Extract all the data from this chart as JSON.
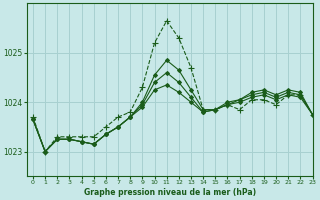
{
  "title": "Graphe pression niveau de la mer (hPa)",
  "bg_color": "#c8e8e8",
  "grid_color": "#a8d0d0",
  "line_color": "#1a5c1a",
  "text_color": "#1a5c1a",
  "xlim": [
    -0.5,
    23
  ],
  "ylim": [
    1022.5,
    1026.0
  ],
  "yticks": [
    1023,
    1024,
    1025
  ],
  "xticks": [
    0,
    1,
    2,
    3,
    4,
    5,
    6,
    7,
    8,
    9,
    10,
    11,
    12,
    13,
    14,
    15,
    16,
    17,
    18,
    19,
    20,
    21,
    22,
    23
  ],
  "series": [
    {
      "x": [
        0,
        1,
        2,
        3,
        4,
        5,
        6,
        7,
        8,
        9,
        10,
        11,
        12,
        13,
        14,
        15,
        16,
        17,
        18,
        19,
        20,
        21,
        22,
        23
      ],
      "y": [
        1023.7,
        1023.0,
        1023.3,
        1023.3,
        1023.3,
        1023.3,
        1023.5,
        1023.7,
        1023.8,
        1024.3,
        1025.2,
        1025.65,
        1025.3,
        1024.7,
        1023.85,
        1023.85,
        1023.95,
        1023.85,
        1024.05,
        1024.05,
        1023.95,
        1024.15,
        1024.15,
        1023.75
      ],
      "linestyle": "--",
      "marker": "+"
    },
    {
      "x": [
        0,
        1,
        2,
        3,
        4,
        5,
        6,
        7,
        8,
        9,
        10,
        11,
        12,
        13,
        14,
        15,
        16,
        17,
        18,
        19,
        20,
        21,
        22,
        23
      ],
      "y": [
        1023.65,
        1023.0,
        1023.25,
        1023.25,
        1023.2,
        1023.15,
        1023.35,
        1023.5,
        1023.7,
        1024.0,
        1024.55,
        1024.85,
        1024.65,
        1024.25,
        1023.85,
        1023.85,
        1024.0,
        1024.05,
        1024.2,
        1024.25,
        1024.15,
        1024.25,
        1024.2,
        1023.75
      ],
      "linestyle": "-",
      "marker": "D"
    },
    {
      "x": [
        0,
        1,
        2,
        3,
        4,
        5,
        6,
        7,
        8,
        9,
        10,
        11,
        12,
        13,
        14,
        15,
        16,
        17,
        18,
        19,
        20,
        21,
        22,
        23
      ],
      "y": [
        1023.65,
        1023.0,
        1023.25,
        1023.25,
        1023.2,
        1023.15,
        1023.35,
        1023.5,
        1023.7,
        1023.95,
        1024.4,
        1024.6,
        1024.4,
        1024.1,
        1023.8,
        1023.85,
        1023.95,
        1024.05,
        1024.15,
        1024.2,
        1024.1,
        1024.2,
        1024.15,
        1023.75
      ],
      "linestyle": "-",
      "marker": "D"
    },
    {
      "x": [
        0,
        1,
        2,
        3,
        4,
        5,
        6,
        7,
        8,
        9,
        10,
        11,
        12,
        13,
        14,
        15,
        16,
        17,
        18,
        19,
        20,
        21,
        22,
        23
      ],
      "y": [
        1023.65,
        1023.0,
        1023.25,
        1023.25,
        1023.2,
        1023.15,
        1023.35,
        1023.5,
        1023.7,
        1023.9,
        1024.25,
        1024.35,
        1024.2,
        1024.0,
        1023.8,
        1023.85,
        1023.95,
        1024.0,
        1024.1,
        1024.15,
        1024.05,
        1024.15,
        1024.1,
        1023.75
      ],
      "linestyle": "-",
      "marker": "D"
    }
  ]
}
